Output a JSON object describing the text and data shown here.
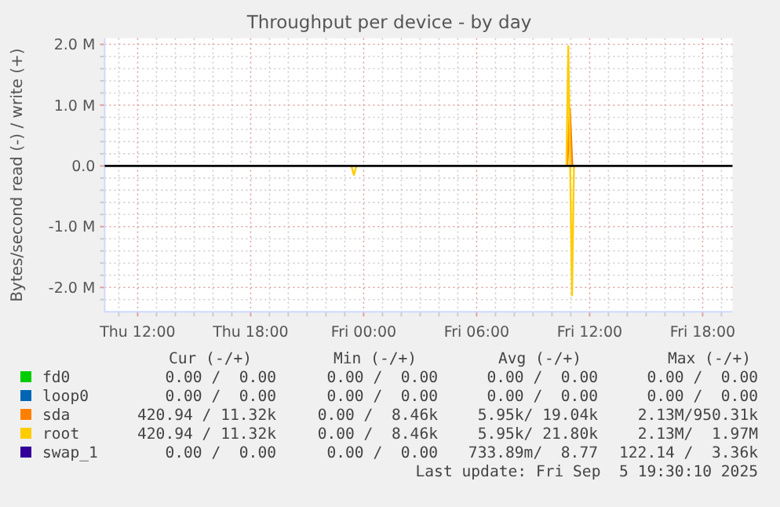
{
  "chart_data": {
    "type": "line",
    "title": "Throughput per device - by day",
    "ylabel": "Bytes/second read (-) / write (+)",
    "xlim": [
      "2025-09-04T10:15",
      "2025-09-05T19:35"
    ],
    "xticks": [
      {
        "value": "2025-09-04T11:00",
        "label": null
      },
      {
        "value": "2025-09-04T12:00",
        "label": "Thu 12:00"
      },
      {
        "value": "2025-09-04T13:00",
        "label": null
      },
      {
        "value": "2025-09-04T14:00",
        "label": null
      },
      {
        "value": "2025-09-04T15:00",
        "label": null
      },
      {
        "value": "2025-09-04T16:00",
        "label": null
      },
      {
        "value": "2025-09-04T17:00",
        "label": null
      },
      {
        "value": "2025-09-04T18:00",
        "label": "Thu 18:00"
      },
      {
        "value": "2025-09-04T19:00",
        "label": null
      },
      {
        "value": "2025-09-04T20:00",
        "label": null
      },
      {
        "value": "2025-09-04T21:00",
        "label": null
      },
      {
        "value": "2025-09-04T22:00",
        "label": null
      },
      {
        "value": "2025-09-04T23:00",
        "label": null
      },
      {
        "value": "2025-09-05T00:00",
        "label": "Fri 00:00"
      },
      {
        "value": "2025-09-05T01:00",
        "label": null
      },
      {
        "value": "2025-09-05T02:00",
        "label": null
      },
      {
        "value": "2025-09-05T03:00",
        "label": null
      },
      {
        "value": "2025-09-05T04:00",
        "label": null
      },
      {
        "value": "2025-09-05T05:00",
        "label": null
      },
      {
        "value": "2025-09-05T06:00",
        "label": "Fri 06:00"
      },
      {
        "value": "2025-09-05T07:00",
        "label": null
      },
      {
        "value": "2025-09-05T08:00",
        "label": null
      },
      {
        "value": "2025-09-05T09:00",
        "label": null
      },
      {
        "value": "2025-09-05T10:00",
        "label": null
      },
      {
        "value": "2025-09-05T11:00",
        "label": null
      },
      {
        "value": "2025-09-05T12:00",
        "label": "Fri 12:00"
      },
      {
        "value": "2025-09-05T13:00",
        "label": null
      },
      {
        "value": "2025-09-05T14:00",
        "label": null
      },
      {
        "value": "2025-09-05T15:00",
        "label": null
      },
      {
        "value": "2025-09-05T16:00",
        "label": null
      },
      {
        "value": "2025-09-05T17:00",
        "label": null
      },
      {
        "value": "2025-09-05T18:00",
        "label": "Fri 18:00"
      },
      {
        "value": "2025-09-05T19:00",
        "label": null
      }
    ],
    "ylim": [
      -2400000,
      2100000
    ],
    "yticks": [
      {
        "value": -2200000,
        "label": null
      },
      {
        "value": -2000000,
        "label": "-2.0 M"
      },
      {
        "value": -1800000,
        "label": null
      },
      {
        "value": -1600000,
        "label": null
      },
      {
        "value": -1400000,
        "label": null
      },
      {
        "value": -1200000,
        "label": null
      },
      {
        "value": -1000000,
        "label": "-1.0 M"
      },
      {
        "value": -800000,
        "label": null
      },
      {
        "value": -600000,
        "label": null
      },
      {
        "value": -400000,
        "label": null
      },
      {
        "value": -200000,
        "label": null
      },
      {
        "value": 0,
        "label": "0.0"
      },
      {
        "value": 200000,
        "label": null
      },
      {
        "value": 400000,
        "label": null
      },
      {
        "value": 600000,
        "label": null
      },
      {
        "value": 800000,
        "label": null
      },
      {
        "value": 1000000,
        "label": "1.0 M"
      },
      {
        "value": 1200000,
        "label": null
      },
      {
        "value": 1400000,
        "label": null
      },
      {
        "value": 1600000,
        "label": null
      },
      {
        "value": 1800000,
        "label": null
      },
      {
        "value": 2000000,
        "label": "2.0 M"
      }
    ],
    "grid": true,
    "legend": "bottom",
    "line_style": "solid",
    "marker": "none",
    "ref_lines": [
      {
        "axis": "y",
        "value": 0,
        "color": "#000000"
      }
    ],
    "series": [
      {
        "name": "fd0",
        "color": "#00cc00"
      },
      {
        "name": "loop0",
        "color": "#0066b3"
      },
      {
        "name": "sda",
        "color": "#ff8000",
        "x": [
          "2025-09-05T10:49",
          "2025-09-05T10:57",
          "2025-09-05T11:05"
        ],
        "values": [
          0,
          950000,
          0
        ]
      },
      {
        "name": "root",
        "color": "#ffcc00",
        "x": [
          "2025-09-05T10:46",
          "2025-09-05T10:52",
          "2025-09-05T10:58",
          "2025-09-05T11:04",
          "2025-09-05T11:10"
        ],
        "values": [
          0,
          1970000,
          0,
          -2130000,
          0
        ]
      },
      {
        "color": "#ffcc00",
        "x": [
          "2025-09-04T23:21",
          "2025-09-04T23:29",
          "2025-09-04T23:37"
        ],
        "values": [
          0,
          -150000,
          0
        ]
      },
      {
        "name": "swap_1",
        "color": "#330099"
      }
    ],
    "annotations": [
      "Cur (-/+)",
      "Min (-/+)",
      "Avg (-/+)",
      "Max (-/+)",
      "0.00 /  0.00",
      "0.00 /  0.00",
      "0.00 /  0.00",
      "0.00 /  0.00",
      "0.00 /  0.00",
      "0.00 /  0.00",
      "0.00 /  0.00",
      "0.00 /  0.00",
      "420.94 / 11.32k",
      "0.00 /  8.46k",
      "5.95k/ 19.04k",
      "2.13M/950.31k",
      "420.94 / 11.32k",
      "0.00 /  8.46k",
      "5.95k/ 21.80k",
      "2.13M/  1.97M",
      "0.00 /  0.00",
      "0.00 /  0.00",
      "733.89m/  8.77",
      "122.14 /  3.36k",
      "Last update: Fri Sep  5 19:30:10 2025"
    ]
  }
}
